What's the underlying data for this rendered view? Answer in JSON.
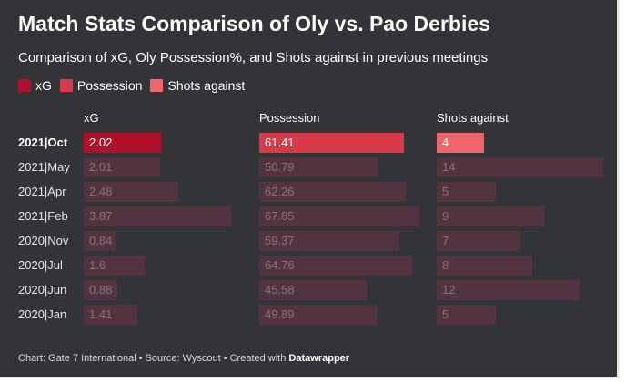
{
  "header": {
    "title": "Match Stats Comparison of Oly vs. Pao Derbies",
    "subtitle": "Comparison of xG, Oly Possession%, and Shots against in previous meetings"
  },
  "legend": [
    {
      "label": "xG",
      "color": "#b0102a"
    },
    {
      "label": "Possession",
      "color": "#d93a4a"
    },
    {
      "label": "Shots against",
      "color": "#f0646c"
    }
  ],
  "colors": {
    "muted_bar": "#53333f",
    "muted_text": "#86757c",
    "highlight_text": "#ffffff"
  },
  "chart_data": {
    "type": "bar",
    "categories": [
      "2021|Oct",
      "2021|May",
      "2021|Apr",
      "2021|Feb",
      "2020|Nov",
      "2020|Jul",
      "2020|Jun",
      "2020|Jan"
    ],
    "highlight_category": "2021|Oct",
    "series": [
      {
        "name": "xG",
        "values": [
          2.02,
          2.01,
          2.48,
          3.87,
          0.84,
          1.6,
          0.88,
          1.41
        ],
        "labels": [
          "2.02",
          "2.01",
          "2.48",
          "3.87",
          "0.84",
          "1.6",
          "0.88",
          "1.41"
        ],
        "max": 4.34
      },
      {
        "name": "Possession",
        "values": [
          61.41,
          50.79,
          62.26,
          67.85,
          59.37,
          64.76,
          45.58,
          49.89
        ],
        "labels": [
          "61.41",
          "50.79",
          "62.26",
          "67.85",
          "59.37",
          "64.76",
          "45.58",
          "49.89"
        ],
        "max": 71.9
      },
      {
        "name": "Shots against",
        "values": [
          4,
          14,
          5,
          9,
          7,
          8,
          12,
          5
        ],
        "labels": [
          "4",
          "14",
          "5",
          "9",
          "7",
          "8",
          "12",
          "5"
        ],
        "max": 14
      }
    ]
  },
  "footer": {
    "prefix": "Chart: Gate 7 International • Source: Wyscout • Created with ",
    "brand": "Datawrapper"
  }
}
